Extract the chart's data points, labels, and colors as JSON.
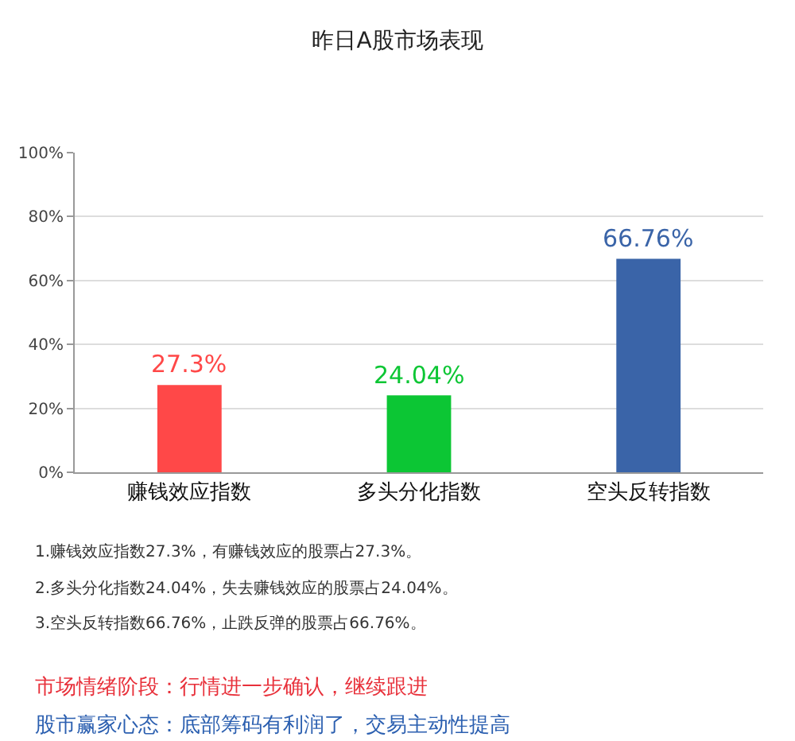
{
  "chart_data": {
    "type": "bar",
    "title": "昨日A股市场表现",
    "categories": [
      "赚钱效应指数",
      "多头分化指数",
      "空头反转指数"
    ],
    "values": [
      27.3,
      24.04,
      66.76
    ],
    "colors": [
      "#ff4848",
      "#0cc634",
      "#3a64a8"
    ],
    "value_labels": [
      "27.3%",
      "24.04%",
      "66.76%"
    ],
    "ylim": [
      0,
      100
    ],
    "yticks": [
      {
        "value": 0,
        "label": "0%"
      },
      {
        "value": 20,
        "label": "20%"
      },
      {
        "value": 40,
        "label": "40%"
      },
      {
        "value": 60,
        "label": "60%"
      },
      {
        "value": 80,
        "label": "80%"
      },
      {
        "value": 100,
        "label": "100%"
      }
    ],
    "grid": "y",
    "annotations": [
      "1.赚钱效应指数27.3%，有赚钱效应的股票占27.3%。",
      "2.多头分化指数24.04%，失去赚钱效应的股票占24.04%。",
      "3.空头反转指数66.76%，止跌反弹的股票占66.76%。",
      "市场情绪阶段：行情进一步确认，继续跟进",
      "股市赢家心态：底部筹码有利润了，交易主动性提高"
    ]
  }
}
